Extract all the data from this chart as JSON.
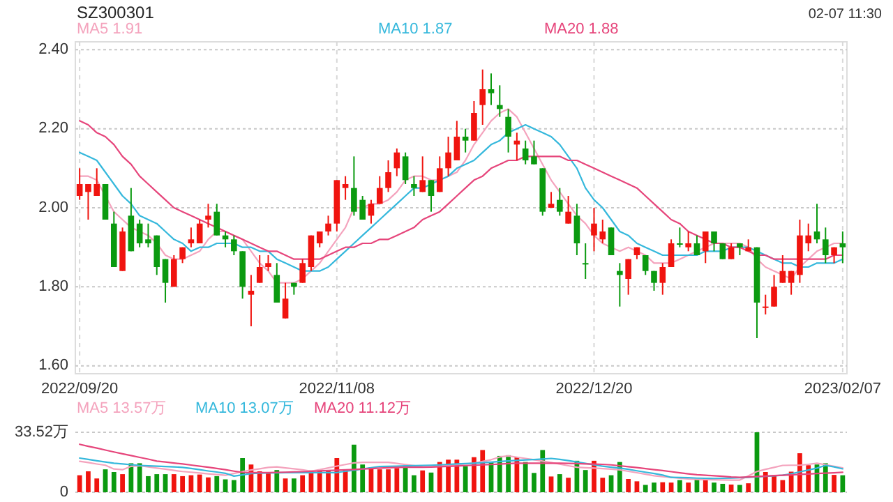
{
  "chart_data": [
    {
      "type": "candlestick",
      "title": "SZ300301",
      "annotations": [
        "02-07 11:30"
      ],
      "legend": "top",
      "grid": true,
      "categories": [
        "2022/09/20",
        null,
        null,
        null,
        null,
        null,
        null,
        null,
        null,
        null,
        null,
        null,
        null,
        null,
        null,
        null,
        null,
        null,
        null,
        null,
        null,
        null,
        null,
        null,
        null,
        null,
        null,
        null,
        null,
        null,
        "2022/11/08",
        null,
        null,
        null,
        null,
        null,
        null,
        null,
        null,
        null,
        null,
        null,
        null,
        null,
        null,
        null,
        null,
        null,
        null,
        null,
        null,
        null,
        null,
        null,
        null,
        null,
        null,
        null,
        null,
        null,
        "2022/12/20",
        null,
        null,
        null,
        null,
        null,
        null,
        null,
        null,
        null,
        null,
        null,
        null,
        null,
        null,
        null,
        null,
        null,
        null,
        null,
        null,
        null,
        null,
        null,
        null,
        null,
        null,
        null,
        null,
        "2023/02/07"
      ],
      "ylim": [
        1.58,
        2.42
      ],
      "yticks": [
        {
          "value": 1.6,
          "label": "1.60"
        },
        {
          "value": 1.8,
          "label": "1.80"
        },
        {
          "value": 2.0,
          "label": "2.00"
        },
        {
          "value": 2.2,
          "label": "2.20"
        },
        {
          "value": 2.4,
          "label": "2.40"
        }
      ],
      "ohlc": [
        [
          2.03,
          2.1,
          2.02,
          2.06
        ],
        [
          2.04,
          2.06,
          1.97,
          2.06
        ],
        [
          2.03,
          2.1,
          2.03,
          2.06
        ],
        [
          2.06,
          2.06,
          1.97,
          1.97
        ],
        [
          1.96,
          1.99,
          1.85,
          1.85
        ],
        [
          1.84,
          1.95,
          1.84,
          1.94
        ],
        [
          1.98,
          2.05,
          1.89,
          1.89
        ],
        [
          1.96,
          1.97,
          1.9,
          1.91
        ],
        [
          1.92,
          1.96,
          1.9,
          1.91
        ],
        [
          1.93,
          1.93,
          1.83,
          1.85
        ],
        [
          1.87,
          1.87,
          1.76,
          1.81
        ],
        [
          1.8,
          1.88,
          1.8,
          1.87
        ],
        [
          1.87,
          1.9,
          1.86,
          1.9
        ],
        [
          1.91,
          1.95,
          1.9,
          1.92
        ],
        [
          1.91,
          1.97,
          1.91,
          1.96
        ],
        [
          1.97,
          2.01,
          1.95,
          1.98
        ],
        [
          1.99,
          2.01,
          1.93,
          1.93
        ],
        [
          1.93,
          1.94,
          1.9,
          1.92
        ],
        [
          1.92,
          1.93,
          1.88,
          1.89
        ],
        [
          1.89,
          1.89,
          1.77,
          1.8
        ],
        [
          1.78,
          1.83,
          1.7,
          1.79
        ],
        [
          1.81,
          1.88,
          1.81,
          1.85
        ],
        [
          1.85,
          1.88,
          1.84,
          1.86
        ],
        [
          1.83,
          1.86,
          1.76,
          1.76
        ],
        [
          1.72,
          1.81,
          1.72,
          1.77
        ],
        [
          1.81,
          1.81,
          1.78,
          1.8
        ],
        [
          1.81,
          1.87,
          1.81,
          1.86
        ],
        [
          1.85,
          1.93,
          1.84,
          1.93
        ],
        [
          1.91,
          1.94,
          1.9,
          1.94
        ],
        [
          1.94,
          1.98,
          1.93,
          1.96
        ],
        [
          1.96,
          2.07,
          1.94,
          2.07
        ],
        [
          2.05,
          2.08,
          2.02,
          2.06
        ],
        [
          2.05,
          2.13,
          1.98,
          1.99
        ],
        [
          2.02,
          2.03,
          1.97,
          1.97
        ],
        [
          1.98,
          2.02,
          1.96,
          2.01
        ],
        [
          2.01,
          2.08,
          2.01,
          2.05
        ],
        [
          2.05,
          2.12,
          2.04,
          2.09
        ],
        [
          2.1,
          2.15,
          2.08,
          2.14
        ],
        [
          2.13,
          2.14,
          2.06,
          2.07
        ],
        [
          2.06,
          2.08,
          2.03,
          2.05
        ],
        [
          2.04,
          2.13,
          2.04,
          2.07
        ],
        [
          2.07,
          2.07,
          1.99,
          2.03
        ],
        [
          2.04,
          2.13,
          2.04,
          2.1
        ],
        [
          2.1,
          2.18,
          2.08,
          2.14
        ],
        [
          2.12,
          2.22,
          2.12,
          2.18
        ],
        [
          2.18,
          2.2,
          2.14,
          2.17
        ],
        [
          2.17,
          2.27,
          2.17,
          2.24
        ],
        [
          2.26,
          2.35,
          2.21,
          2.3
        ],
        [
          2.3,
          2.34,
          2.26,
          2.29
        ],
        [
          2.26,
          2.31,
          2.23,
          2.25
        ],
        [
          2.23,
          2.25,
          2.14,
          2.18
        ],
        [
          2.16,
          2.19,
          2.12,
          2.17
        ],
        [
          2.15,
          2.17,
          2.11,
          2.12
        ],
        [
          2.13,
          2.17,
          2.11,
          2.11
        ],
        [
          2.1,
          2.1,
          1.98,
          1.99
        ],
        [
          2.0,
          2.04,
          2.0,
          2.01
        ],
        [
          2.02,
          2.05,
          1.98,
          1.99
        ],
        [
          1.96,
          2.03,
          1.96,
          1.99
        ],
        [
          1.98,
          2.01,
          1.88,
          1.91
        ],
        [
          1.86,
          1.91,
          1.82,
          1.86
        ],
        [
          1.93,
          2.0,
          1.89,
          1.96
        ],
        [
          1.92,
          1.97,
          1.91,
          1.94
        ],
        [
          1.95,
          1.95,
          1.88,
          1.88
        ],
        [
          1.84,
          1.86,
          1.75,
          1.83
        ],
        [
          1.82,
          1.87,
          1.78,
          1.87
        ],
        [
          1.88,
          1.9,
          1.87,
          1.9
        ],
        [
          1.88,
          1.88,
          1.83,
          1.84
        ],
        [
          1.84,
          1.84,
          1.79,
          1.81
        ],
        [
          1.81,
          1.86,
          1.78,
          1.85
        ],
        [
          1.85,
          1.92,
          1.85,
          1.91
        ],
        [
          1.91,
          1.95,
          1.9,
          1.91
        ],
        [
          1.9,
          1.94,
          1.89,
          1.91
        ],
        [
          1.91,
          1.93,
          1.88,
          1.88
        ],
        [
          1.89,
          1.94,
          1.86,
          1.94
        ],
        [
          1.94,
          1.94,
          1.89,
          1.91
        ],
        [
          1.91,
          1.91,
          1.87,
          1.87
        ],
        [
          1.87,
          1.91,
          1.87,
          1.9
        ],
        [
          1.91,
          1.91,
          1.88,
          1.9
        ],
        [
          1.89,
          1.92,
          1.89,
          1.9
        ],
        [
          1.9,
          1.9,
          1.67,
          1.76
        ],
        [
          1.75,
          1.78,
          1.73,
          1.75
        ],
        [
          1.75,
          1.83,
          1.75,
          1.8
        ],
        [
          1.81,
          1.88,
          1.81,
          1.84
        ],
        [
          1.81,
          1.84,
          1.78,
          1.84
        ],
        [
          1.83,
          1.97,
          1.81,
          1.93
        ],
        [
          1.91,
          1.96,
          1.89,
          1.93
        ],
        [
          1.94,
          2.01,
          1.91,
          1.92
        ],
        [
          1.92,
          1.95,
          1.86,
          1.88
        ],
        [
          1.88,
          1.9,
          1.86,
          1.9
        ],
        [
          1.91,
          1.94,
          1.86,
          1.9
        ]
      ],
      "colors": [
        "#f0140f",
        "#f0140f",
        "#f0140f",
        "#0b9a10",
        "#0b9a10",
        "#f0140f",
        "#0b9a10",
        "#0b9a10",
        "#0b9a10",
        "#0b9a10",
        "#0b9a10",
        "#f0140f",
        "#f0140f",
        "#f0140f",
        "#f0140f",
        "#f0140f",
        "#0b9a10",
        "#0b9a10",
        "#0b9a10",
        "#0b9a10",
        "#f0140f",
        "#f0140f",
        "#f0140f",
        "#0b9a10",
        "#f0140f",
        "#0b9a10",
        "#f0140f",
        "#f0140f",
        "#f0140f",
        "#f0140f",
        "#f0140f",
        "#f0140f",
        "#0b9a10",
        "#0b9a10",
        "#f0140f",
        "#f0140f",
        "#f0140f",
        "#f0140f",
        "#0b9a10",
        "#0b9a10",
        "#f0140f",
        "#0b9a10",
        "#f0140f",
        "#f0140f",
        "#f0140f",
        "#0b9a10",
        "#f0140f",
        "#f0140f",
        "#0b9a10",
        "#0b9a10",
        "#0b9a10",
        "#f0140f",
        "#0b9a10",
        "#0b9a10",
        "#0b9a10",
        "#f0140f",
        "#0b9a10",
        "#f0140f",
        "#0b9a10",
        "#0b9a10",
        "#f0140f",
        "#f0140f",
        "#0b9a10",
        "#0b9a10",
        "#f0140f",
        "#f0140f",
        "#0b9a10",
        "#0b9a10",
        "#f0140f",
        "#f0140f",
        "#0b9a10",
        "#f0140f",
        "#0b9a10",
        "#f0140f",
        "#0b9a10",
        "#0b9a10",
        "#f0140f",
        "#0b9a10",
        "#f0140f",
        "#0b9a10",
        "#f0140f",
        "#f0140f",
        "#f0140f",
        "#f0140f",
        "#f0140f",
        "#f0140f",
        "#0b9a10",
        "#0b9a10",
        "#f0140f",
        "#0b9a10"
      ],
      "series": [
        {
          "type": "line",
          "name": "MA5 1.91",
          "color": "#f4a3bd",
          "values": [
            2.08,
            2.08,
            2.07,
            2.03,
            1.99,
            1.97,
            1.95,
            1.94,
            1.93,
            1.91,
            1.88,
            1.87,
            1.87,
            1.88,
            1.89,
            1.92,
            1.94,
            1.94,
            1.93,
            1.92,
            1.89,
            1.86,
            1.84,
            1.81,
            1.81,
            1.81,
            1.82,
            1.84,
            1.86,
            1.89,
            1.92,
            1.95,
            2.0,
            2.0,
            2.01,
            2.01,
            2.02,
            2.04,
            2.07,
            2.08,
            2.08,
            2.07,
            2.07,
            2.08,
            2.09,
            2.12,
            2.16,
            2.19,
            2.22,
            2.24,
            2.25,
            2.23,
            2.19,
            2.15,
            2.11,
            2.07,
            2.04,
            2.01,
            1.98,
            1.96,
            1.93,
            1.91,
            1.9,
            1.89,
            1.9,
            1.89,
            1.88,
            1.86,
            1.86,
            1.86,
            1.87,
            1.88,
            1.89,
            1.9,
            1.91,
            1.91,
            1.91,
            1.91,
            1.9,
            1.87,
            1.85,
            1.84,
            1.83,
            1.82,
            1.85,
            1.87,
            1.89,
            1.9,
            1.91,
            1.91
          ]
        },
        {
          "type": "line",
          "name": "MA10 1.87",
          "color": "#35b8dc",
          "values": [
            2.14,
            2.13,
            2.12,
            2.09,
            2.06,
            2.03,
            2.01,
            1.98,
            1.97,
            1.96,
            1.94,
            1.92,
            1.91,
            1.89,
            1.9,
            1.9,
            1.91,
            1.91,
            1.91,
            1.9,
            1.9,
            1.89,
            1.89,
            1.87,
            1.86,
            1.85,
            1.84,
            1.84,
            1.84,
            1.85,
            1.87,
            1.89,
            1.91,
            1.93,
            1.95,
            1.97,
            1.99,
            2.01,
            2.03,
            2.05,
            2.05,
            2.06,
            2.07,
            2.08,
            2.1,
            2.11,
            2.12,
            2.14,
            2.16,
            2.17,
            2.19,
            2.2,
            2.21,
            2.2,
            2.19,
            2.18,
            2.16,
            2.13,
            2.1,
            2.05,
            2.02,
            2.0,
            1.97,
            1.94,
            1.93,
            1.91,
            1.9,
            1.89,
            1.88,
            1.88,
            1.88,
            1.88,
            1.88,
            1.89,
            1.89,
            1.89,
            1.9,
            1.9,
            1.9,
            1.89,
            1.88,
            1.87,
            1.86,
            1.86,
            1.85,
            1.85,
            1.86,
            1.86,
            1.86,
            1.87
          ]
        },
        {
          "type": "line",
          "name": "MA20 1.88",
          "color": "#e6457b",
          "values": [
            2.22,
            2.21,
            2.19,
            2.18,
            2.16,
            2.13,
            2.11,
            2.08,
            2.06,
            2.04,
            2.02,
            2.0,
            1.99,
            1.98,
            1.97,
            1.96,
            1.95,
            1.94,
            1.93,
            1.92,
            1.91,
            1.9,
            1.89,
            1.89,
            1.88,
            1.87,
            1.87,
            1.87,
            1.87,
            1.88,
            1.89,
            1.9,
            1.9,
            1.91,
            1.91,
            1.92,
            1.92,
            1.93,
            1.94,
            1.95,
            1.97,
            1.98,
            1.99,
            2.01,
            2.03,
            2.05,
            2.07,
            2.08,
            2.1,
            2.11,
            2.12,
            2.12,
            2.13,
            2.13,
            2.13,
            2.13,
            2.13,
            2.12,
            2.12,
            2.11,
            2.1,
            2.09,
            2.08,
            2.07,
            2.06,
            2.05,
            2.03,
            2.01,
            1.99,
            1.97,
            1.96,
            1.94,
            1.93,
            1.92,
            1.91,
            1.91,
            1.9,
            1.9,
            1.89,
            1.88,
            1.88,
            1.87,
            1.87,
            1.87,
            1.87,
            1.87,
            1.87,
            1.87,
            1.88,
            1.88
          ]
        }
      ]
    },
    {
      "type": "bar",
      "legend": "top",
      "grid": true,
      "categories": [
        null,
        null,
        null,
        null,
        null,
        null,
        null,
        null,
        null,
        null,
        null,
        null,
        null,
        null,
        null,
        null,
        null,
        null,
        null,
        null,
        null,
        null,
        null,
        null,
        null,
        null,
        null,
        null,
        null,
        null,
        null,
        null,
        null,
        null,
        null,
        null,
        null,
        null,
        null,
        null,
        null,
        null,
        null,
        null,
        null,
        null,
        null,
        null,
        null,
        null,
        null,
        null,
        null,
        null,
        null,
        null,
        null,
        null,
        null,
        null,
        null,
        null,
        null,
        null,
        null,
        null,
        null,
        null,
        null,
        null,
        null,
        null,
        null,
        null,
        null,
        null,
        null,
        null,
        null,
        null,
        null,
        null,
        null,
        null,
        null,
        null,
        null,
        null,
        null,
        null
      ],
      "ylim": [
        0,
        33.52
      ],
      "yticks": [
        0,
        {
          "value": 33.52,
          "label": "33.52万"
        }
      ],
      "series": [
        {
          "values": [
            9.5,
            11.7,
            7.7,
            12.8,
            11.3,
            10.1,
            16.2,
            16.2,
            9.0,
            10.1,
            10.1,
            10.1,
            9.0,
            9.5,
            9.9,
            8.3,
            9.0,
            7.2,
            6.8,
            19.1,
            15.5,
            11.7,
            10.6,
            12.4,
            7.7,
            7.7,
            9.5,
            12.2,
            12.2,
            12.2,
            19.1,
            12.2,
            26.6,
            15.5,
            14.0,
            12.8,
            12.8,
            13.5,
            14.4,
            9.5,
            12.2,
            11.0,
            16.9,
            18.2,
            18.2,
            14.6,
            19.6,
            23.6,
            16.9,
            20.3,
            20.7,
            19.6,
            16.9,
            10.8,
            23.6,
            8.8,
            10.1,
            8.1,
            17.6,
            12.4,
            17.6,
            8.1,
            9.5,
            16.9,
            7.4,
            6.1,
            4.1,
            5.4,
            5.6,
            5.4,
            6.8,
            5.4,
            7.0,
            8.1,
            5.4,
            4.7,
            4.3,
            4.1,
            5.0,
            33.52,
            11.3,
            9.5,
            6.8,
            11.5,
            21.8,
            15.1,
            15.5,
            16.2,
            9.7,
            9.5
          ],
          "colors": [
            "#f0140f",
            "#f0140f",
            "#f0140f",
            "#0b9a10",
            "#0b9a10",
            "#f0140f",
            "#0b9a10",
            "#0b9a10",
            "#0b9a10",
            "#0b9a10",
            "#0b9a10",
            "#f0140f",
            "#f0140f",
            "#f0140f",
            "#f0140f",
            "#f0140f",
            "#0b9a10",
            "#0b9a10",
            "#0b9a10",
            "#0b9a10",
            "#f0140f",
            "#f0140f",
            "#f0140f",
            "#0b9a10",
            "#f0140f",
            "#0b9a10",
            "#f0140f",
            "#f0140f",
            "#f0140f",
            "#f0140f",
            "#f0140f",
            "#f0140f",
            "#0b9a10",
            "#0b9a10",
            "#f0140f",
            "#f0140f",
            "#f0140f",
            "#f0140f",
            "#0b9a10",
            "#0b9a10",
            "#f0140f",
            "#0b9a10",
            "#f0140f",
            "#f0140f",
            "#f0140f",
            "#0b9a10",
            "#f0140f",
            "#f0140f",
            "#0b9a10",
            "#0b9a10",
            "#0b9a10",
            "#f0140f",
            "#0b9a10",
            "#0b9a10",
            "#0b9a10",
            "#f0140f",
            "#0b9a10",
            "#f0140f",
            "#0b9a10",
            "#0b9a10",
            "#f0140f",
            "#f0140f",
            "#0b9a10",
            "#0b9a10",
            "#f0140f",
            "#f0140f",
            "#0b9a10",
            "#0b9a10",
            "#f0140f",
            "#f0140f",
            "#0b9a10",
            "#f0140f",
            "#0b9a10",
            "#f0140f",
            "#0b9a10",
            "#0b9a10",
            "#f0140f",
            "#0b9a10",
            "#f0140f",
            "#0b9a10",
            "#f0140f",
            "#f0140f",
            "#f0140f",
            "#f0140f",
            "#f0140f",
            "#f0140f",
            "#0b9a10",
            "#0b9a10",
            "#f0140f",
            "#0b9a10"
          ]
        },
        {
          "type": "line",
          "name": "MA5 13.57万",
          "color": "#f4a3bd",
          "values": [
            17.3,
            16.6,
            15.8,
            15.1,
            13.0,
            12.6,
            14.5,
            14.8,
            14.2,
            13.5,
            12.9,
            12.2,
            11.6,
            11.2,
            10.8,
            10.3,
            9.9,
            9.5,
            10.5,
            11.6,
            12.4,
            13.1,
            13.9,
            14.2,
            13.6,
            13.1,
            12.5,
            11.8,
            12.6,
            13.6,
            14.6,
            15.5,
            16.4,
            16.7,
            16.7,
            16.7,
            16.7,
            16.1,
            15.5,
            14.9,
            14.3,
            14.2,
            14.6,
            15.0,
            15.4,
            15.8,
            16.2,
            17.2,
            18.2,
            19.7,
            20.3,
            19.6,
            18.9,
            18.2,
            17.4,
            16.6,
            15.7,
            14.8,
            14.0,
            13.7,
            13.5,
            13.2,
            12.9,
            12.5,
            11.7,
            10.9,
            10.1,
            9.2,
            8.7,
            8.3,
            7.8,
            7.4,
            7.2,
            7.1,
            7.0,
            6.9,
            6.8,
            6.8,
            9.2,
            11.6,
            12.8,
            13.9,
            15.0,
            15.1,
            15.1,
            15.6,
            16.2,
            15.4,
            14.5,
            13.57
          ]
        },
        {
          "type": "line",
          "name": "MA10 13.07万",
          "color": "#35b8dc",
          "values": [
            19.1,
            18.4,
            17.6,
            16.9,
            16.2,
            15.8,
            15.4,
            15.0,
            14.8,
            14.6,
            14.4,
            14.2,
            13.9,
            13.3,
            12.6,
            11.9,
            11.3,
            10.6,
            9.0,
            9.7,
            10.5,
            10.7,
            10.8,
            10.9,
            11.0,
            11.0,
            11.0,
            11.0,
            11.0,
            11.0,
            11.0,
            11.7,
            12.3,
            13.0,
            13.7,
            14.4,
            14.5,
            14.6,
            14.8,
            14.9,
            15.0,
            15.1,
            15.3,
            15.6,
            15.8,
            16.0,
            16.2,
            16.5,
            16.8,
            17.2,
            17.5,
            17.8,
            18.1,
            18.3,
            18.6,
            18.9,
            18.4,
            17.7,
            16.9,
            16.1,
            15.3,
            14.6,
            14.0,
            13.5,
            12.8,
            12.0,
            11.2,
            10.5,
            9.6,
            8.3,
            8.2,
            8.1,
            7.9,
            7.8,
            7.7,
            7.8,
            7.9,
            8.1,
            8.3,
            8.6,
            8.9,
            9.2,
            9.5,
            10.3,
            11.4,
            12.4,
            13.5,
            15.0,
            14.2,
            13.07
          ]
        },
        {
          "type": "line",
          "name": "MA20 11.12万",
          "color": "#e6457b",
          "values": [
            26.8,
            25.7,
            24.7,
            23.6,
            22.5,
            21.5,
            20.5,
            19.5,
            18.5,
            17.4,
            16.9,
            16.3,
            15.8,
            15.2,
            14.6,
            14.0,
            13.3,
            12.6,
            11.8,
            11.1,
            11.0,
            11.0,
            11.0,
            11.1,
            11.2,
            11.4,
            11.5,
            11.7,
            11.9,
            12.1,
            12.3,
            12.5,
            12.7,
            13.0,
            13.2,
            13.5,
            13.7,
            13.9,
            14.0,
            14.0,
            14.0,
            14.1,
            14.3,
            14.5,
            14.7,
            14.9,
            15.1,
            15.3,
            15.5,
            15.7,
            16.0,
            16.2,
            16.2,
            16.2,
            16.2,
            16.2,
            16.2,
            16.1,
            16.0,
            15.8,
            15.7,
            15.6,
            15.3,
            14.8,
            14.3,
            13.8,
            13.2,
            12.6,
            12.1,
            11.5,
            10.9,
            10.3,
            9.8,
            9.5,
            9.2,
            8.9,
            8.5,
            8.3,
            8.5,
            8.8,
            9.0,
            9.3,
            9.5,
            9.7,
            10.0,
            10.2,
            10.5,
            10.7,
            10.9,
            11.12
          ]
        }
      ]
    }
  ]
}
